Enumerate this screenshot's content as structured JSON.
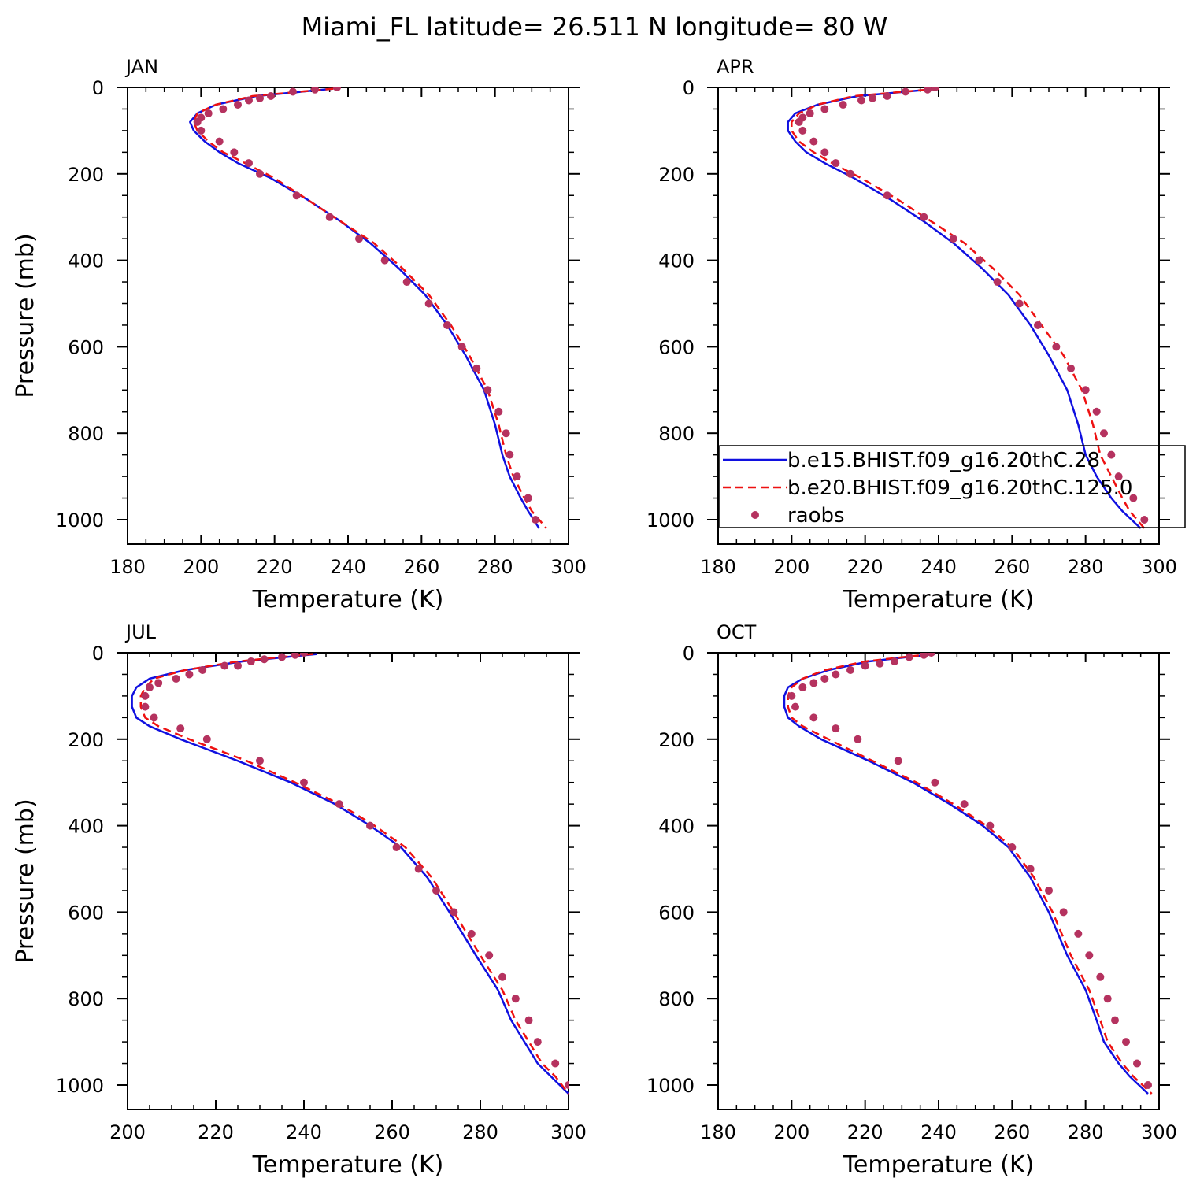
{
  "figure": {
    "title": "Miami_FL  latitude= 26.511 N longitude= 80 W"
  },
  "colors": {
    "model1": "#1010e0",
    "model2": "#ee1111",
    "raobs": "#b5325f",
    "axis": "#000000"
  },
  "legend": {
    "entries": [
      {
        "label": "b.e15.BHIST.f09_g16.20thC.28",
        "style": "solid",
        "color": "#1010e0"
      },
      {
        "label": "b.e20.BHIST.f09_g16.20thC.125.0",
        "style": "dashed",
        "color": "#ee1111"
      },
      {
        "label": "raobs",
        "style": "dots",
        "color": "#b5325f"
      }
    ]
  },
  "chart_data": [
    {
      "type": "line",
      "panel_label": "JAN",
      "xlabel": "Temperature (K)",
      "ylabel": "Pressure (mb)",
      "xlim": [
        180,
        300
      ],
      "ylim": [
        1000,
        0
      ],
      "xticks": [
        "180",
        "200",
        "220",
        "240",
        "260",
        "280",
        "300"
      ],
      "yticks": [
        "0",
        "200",
        "400",
        "600",
        "800",
        "1000"
      ],
      "series": [
        {
          "name": "b.e15.BHIST.f09_g16.20thC.28",
          "x": [
            236,
            215,
            204,
            199,
            197,
            198,
            201,
            205,
            210,
            219,
            229,
            238,
            246,
            254,
            261,
            267,
            272,
            277,
            280,
            282,
            284,
            287,
            289,
            292
          ],
          "y": [
            3,
            20,
            40,
            60,
            80,
            100,
            125,
            150,
            175,
            210,
            260,
            310,
            360,
            420,
            480,
            550,
            620,
            700,
            780,
            850,
            900,
            950,
            980,
            1020
          ]
        },
        {
          "name": "b.e20.BHIST.f09_g16.20thC.125.0",
          "x": [
            236,
            214,
            204,
            199,
            198,
            199,
            202,
            206,
            212,
            220,
            229,
            238,
            247,
            255,
            262,
            268,
            273,
            278,
            281,
            283,
            285,
            288,
            290,
            294
          ],
          "y": [
            3,
            20,
            40,
            60,
            80,
            100,
            125,
            150,
            175,
            210,
            260,
            310,
            360,
            420,
            480,
            550,
            620,
            700,
            780,
            850,
            900,
            950,
            980,
            1020
          ]
        },
        {
          "name": "raobs",
          "x": [
            237,
            231,
            225,
            219,
            216,
            213,
            210,
            206,
            202,
            200,
            199,
            200,
            205,
            209,
            213,
            216,
            226,
            235,
            243,
            250,
            256,
            262,
            267,
            271,
            275,
            278,
            281,
            283,
            284,
            286,
            289,
            291
          ],
          "y": [
            0,
            5,
            10,
            20,
            25,
            30,
            40,
            50,
            60,
            70,
            80,
            100,
            125,
            150,
            175,
            200,
            250,
            300,
            350,
            400,
            450,
            500,
            550,
            600,
            650,
            700,
            750,
            800,
            850,
            900,
            950,
            1000
          ]
        }
      ]
    },
    {
      "type": "line",
      "panel_label": "APR",
      "xlabel": "Temperature (K)",
      "ylabel": "",
      "xlim": [
        180,
        300
      ],
      "ylim": [
        1000,
        0
      ],
      "xticks": [
        "180",
        "200",
        "220",
        "240",
        "260",
        "280",
        "300"
      ],
      "yticks": [
        "0",
        "200",
        "400",
        "600",
        "800",
        "1000"
      ],
      "series": [
        {
          "name": "b.e15.BHIST.f09_g16.20thC.28",
          "x": [
            240,
            218,
            207,
            201,
            199,
            199,
            201,
            204,
            209,
            217,
            227,
            236,
            244,
            252,
            259,
            265,
            270,
            275,
            278,
            280,
            283,
            287,
            290,
            295
          ],
          "y": [
            3,
            20,
            40,
            60,
            80,
            100,
            125,
            150,
            175,
            210,
            260,
            310,
            360,
            420,
            480,
            550,
            620,
            700,
            780,
            850,
            900,
            950,
            980,
            1020
          ]
        },
        {
          "name": "b.e20.BHIST.f09_g16.20thC.125.0",
          "x": [
            240,
            217,
            207,
            202,
            200,
            200,
            202,
            206,
            211,
            219,
            229,
            238,
            247,
            255,
            262,
            268,
            274,
            279,
            282,
            284,
            287,
            290,
            292,
            296
          ],
          "y": [
            3,
            20,
            40,
            60,
            80,
            100,
            125,
            150,
            175,
            210,
            260,
            310,
            360,
            420,
            480,
            550,
            620,
            700,
            780,
            850,
            900,
            950,
            980,
            1020
          ]
        },
        {
          "name": "raobs",
          "x": [
            239,
            237,
            231,
            226,
            222,
            219,
            214,
            209,
            205,
            203,
            202,
            203,
            206,
            209,
            212,
            216,
            226,
            236,
            244,
            251,
            256,
            262,
            267,
            272,
            276,
            280,
            283,
            285,
            287,
            289,
            293,
            296
          ],
          "y": [
            0,
            5,
            10,
            20,
            25,
            30,
            40,
            50,
            60,
            70,
            80,
            100,
            125,
            150,
            175,
            200,
            250,
            300,
            350,
            400,
            450,
            500,
            550,
            600,
            650,
            700,
            750,
            800,
            850,
            900,
            950,
            1000
          ]
        }
      ]
    },
    {
      "type": "line",
      "panel_label": "JUL",
      "xlabel": "Temperature (K)",
      "ylabel": "Pressure (mb)",
      "xlim": [
        200,
        300
      ],
      "ylim": [
        1000,
        0
      ],
      "xticks": [
        "200",
        "220",
        "240",
        "260",
        "280",
        "300"
      ],
      "yticks": [
        "0",
        "200",
        "400",
        "600",
        "800",
        "1000"
      ],
      "series": [
        {
          "name": "b.e15.BHIST.f09_g16.20thC.28",
          "x": [
            243,
            226,
            213,
            205,
            202,
            201,
            201,
            202,
            205,
            212,
            225,
            237,
            247,
            255,
            262,
            268,
            273,
            279,
            284,
            287,
            290,
            293,
            296,
            300
          ],
          "y": [
            3,
            20,
            40,
            60,
            80,
            100,
            125,
            150,
            170,
            200,
            250,
            300,
            350,
            400,
            450,
            520,
            600,
            700,
            780,
            850,
            900,
            950,
            980,
            1020
          ]
        },
        {
          "name": "b.e20.BHIST.f09_g16.20thC.125.0",
          "x": [
            242,
            225,
            213,
            206,
            204,
            203,
            203,
            204,
            207,
            214,
            227,
            238,
            248,
            256,
            263,
            269,
            274,
            280,
            285,
            288,
            291,
            294,
            297,
            300
          ],
          "y": [
            3,
            20,
            40,
            60,
            80,
            100,
            125,
            150,
            170,
            200,
            250,
            300,
            350,
            400,
            450,
            520,
            600,
            700,
            780,
            850,
            900,
            950,
            980,
            1020
          ]
        },
        {
          "name": "raobs",
          "x": [
            240,
            238,
            235,
            231,
            228,
            225,
            222,
            217,
            214,
            211,
            207,
            205,
            204,
            204,
            206,
            212,
            218,
            230,
            240,
            248,
            255,
            261,
            266,
            270,
            274,
            278,
            282,
            285,
            288,
            291,
            293,
            297,
            300
          ],
          "y": [
            0,
            5,
            10,
            15,
            20,
            30,
            30,
            40,
            50,
            60,
            70,
            80,
            100,
            125,
            150,
            175,
            200,
            250,
            300,
            350,
            400,
            450,
            500,
            550,
            600,
            650,
            700,
            750,
            800,
            850,
            900,
            950,
            1000
          ]
        }
      ]
    },
    {
      "type": "line",
      "panel_label": "OCT",
      "xlabel": "Temperature (K)",
      "ylabel": "",
      "xlim": [
        180,
        300
      ],
      "ylim": [
        1000,
        0
      ],
      "xticks": [
        "180",
        "200",
        "220",
        "240",
        "260",
        "280",
        "300"
      ],
      "yticks": [
        "0",
        "200",
        "400",
        "600",
        "800",
        "1000"
      ],
      "series": [
        {
          "name": "b.e15.BHIST.f09_g16.20thC.28",
          "x": [
            239,
            221,
            210,
            203,
            199,
            198,
            198,
            199,
            202,
            208,
            221,
            233,
            243,
            252,
            259,
            265,
            270,
            275,
            280,
            283,
            285,
            289,
            292,
            297
          ],
          "y": [
            3,
            20,
            40,
            60,
            80,
            100,
            125,
            150,
            170,
            200,
            250,
            300,
            350,
            400,
            450,
            520,
            600,
            700,
            780,
            850,
            900,
            950,
            980,
            1020
          ]
        },
        {
          "name": "b.e20.BHIST.f09_g16.20thC.125.0",
          "x": [
            238,
            220,
            209,
            203,
            200,
            199,
            199,
            200,
            203,
            210,
            222,
            234,
            244,
            253,
            260,
            266,
            271,
            276,
            281,
            284,
            286,
            290,
            293,
            298
          ],
          "y": [
            3,
            20,
            40,
            60,
            80,
            100,
            125,
            150,
            170,
            200,
            250,
            300,
            350,
            400,
            450,
            520,
            600,
            700,
            780,
            850,
            900,
            950,
            980,
            1020
          ]
        },
        {
          "name": "raobs",
          "x": [
            238,
            236,
            232,
            228,
            224,
            220,
            216,
            212,
            209,
            206,
            203,
            200,
            201,
            206,
            212,
            218,
            229,
            239,
            247,
            254,
            260,
            265,
            270,
            274,
            278,
            281,
            284,
            286,
            288,
            291,
            294,
            297
          ],
          "y": [
            0,
            5,
            10,
            20,
            25,
            30,
            40,
            50,
            60,
            70,
            80,
            100,
            125,
            150,
            175,
            200,
            250,
            300,
            350,
            400,
            450,
            500,
            550,
            600,
            650,
            700,
            750,
            800,
            850,
            900,
            950,
            1000
          ]
        }
      ]
    }
  ]
}
